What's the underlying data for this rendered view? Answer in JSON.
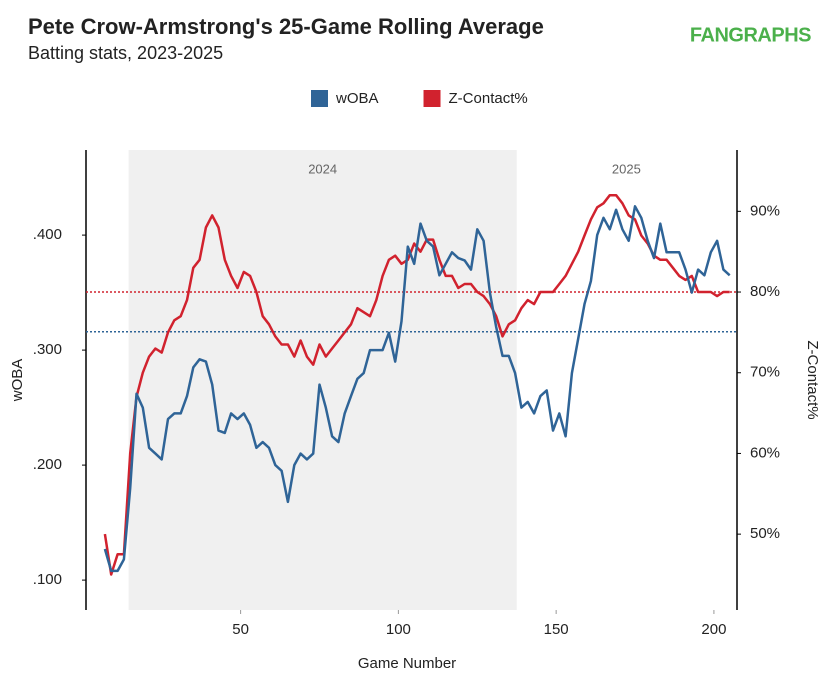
{
  "chart_data": {
    "type": "line",
    "title": "Pete Crow-Armstrong's 25-Game Rolling Average",
    "subtitle": "Batting stats, 2023-2025",
    "logo": "FANGRAPHS",
    "x_label": "Game Number",
    "y_label": "wOBA",
    "y2_label": "Z-Contact%",
    "legend": "top",
    "x": [
      7,
      9,
      11,
      13,
      15,
      17,
      19,
      21,
      23,
      25,
      27,
      29,
      31,
      33,
      35,
      37,
      39,
      41,
      43,
      45,
      47,
      49,
      51,
      53,
      55,
      57,
      59,
      61,
      63,
      65,
      67,
      69,
      71,
      73,
      75,
      77,
      79,
      81,
      83,
      85,
      87,
      89,
      91,
      93,
      95,
      97,
      99,
      101,
      103,
      105,
      107,
      109,
      111,
      113,
      115,
      117,
      119,
      121,
      123,
      125,
      127,
      129,
      131,
      133,
      135,
      137,
      139,
      141,
      143,
      145,
      147,
      149,
      151,
      153,
      155,
      157,
      159,
      161,
      163,
      165,
      167,
      169,
      171,
      173,
      175,
      177,
      179,
      181,
      183,
      185,
      187,
      189,
      191,
      193,
      195,
      197,
      199,
      201,
      203,
      205
    ],
    "series": [
      {
        "name": "wOBA",
        "color": "#2f6497",
        "values": [
          0.127,
          0.108,
          0.108,
          0.118,
          0.18,
          0.262,
          0.25,
          0.215,
          0.21,
          0.205,
          0.24,
          0.245,
          0.245,
          0.26,
          0.285,
          0.292,
          0.29,
          0.27,
          0.23,
          0.228,
          0.245,
          0.24,
          0.245,
          0.235,
          0.215,
          0.22,
          0.215,
          0.2,
          0.195,
          0.168,
          0.2,
          0.21,
          0.205,
          0.21,
          0.27,
          0.25,
          0.225,
          0.22,
          0.245,
          0.26,
          0.275,
          0.28,
          0.3,
          0.3,
          0.3,
          0.315,
          0.29,
          0.325,
          0.39,
          0.375,
          0.41,
          0.395,
          0.39,
          0.365,
          0.375,
          0.385,
          0.38,
          0.378,
          0.37,
          0.405,
          0.395,
          0.35,
          0.32,
          0.295,
          0.295,
          0.28,
          0.25,
          0.255,
          0.245,
          0.26,
          0.265,
          0.23,
          0.245,
          0.225,
          0.28,
          0.31,
          0.34,
          0.36,
          0.4,
          0.415,
          0.405,
          0.422,
          0.405,
          0.395,
          0.425,
          0.415,
          0.395,
          0.38,
          0.41,
          0.385,
          0.385,
          0.385,
          0.37,
          0.35,
          0.37,
          0.365,
          0.385,
          0.395,
          0.37,
          0.365
        ]
      },
      {
        "name": "Z-Contact%",
        "color": "#d1222e",
        "axis": "y2",
        "values": [
          50,
          45,
          47.5,
          47.5,
          60,
          67,
          70,
          72,
          73,
          72.5,
          75,
          76.5,
          77,
          79,
          83,
          84,
          88,
          89.5,
          88,
          84,
          82,
          80.5,
          82.5,
          82,
          80,
          77,
          76,
          74.5,
          73.5,
          73.5,
          72,
          74,
          72,
          71,
          73.5,
          72,
          73,
          74,
          75,
          76,
          78,
          77.5,
          77,
          79,
          82,
          84,
          84.5,
          83.5,
          84,
          86,
          85,
          86.5,
          86.5,
          84,
          82,
          82,
          80.5,
          81,
          81,
          80,
          79.5,
          78.5,
          77,
          74.5,
          76,
          76.5,
          78,
          79,
          78.5,
          80,
          80,
          80,
          81,
          82,
          83.5,
          85,
          87,
          89,
          90.5,
          91,
          92,
          92,
          91,
          89.5,
          89,
          87,
          86,
          84.5,
          84,
          84,
          83,
          82,
          81.5,
          82,
          80,
          80,
          80,
          79.5,
          80,
          80
        ]
      }
    ],
    "reference_lines": [
      {
        "value": 0.316,
        "color": "#2f6497"
      },
      {
        "value": 80,
        "axis": "y2",
        "color": "#d1222e"
      }
    ],
    "regions": [
      {
        "label": "2024",
        "x": [
          14.5,
          137.5
        ],
        "shaded": true
      },
      {
        "label": "2025",
        "x": [
          137.5,
          207
        ],
        "shaded": false
      }
    ],
    "xlim": [
      1,
      207
    ],
    "xticks": [
      50,
      100,
      150,
      200
    ],
    "ylim": [
      0.074,
      0.474
    ],
    "yticks": [
      {
        "value": 0.1,
        "label": ".100"
      },
      {
        "value": 0.2,
        "label": ".200"
      },
      {
        "value": 0.3,
        "label": ".300"
      },
      {
        "value": 0.4,
        "label": ".400"
      }
    ],
    "y2lim": [
      40.6,
      97.6
    ],
    "y2ticks": [
      {
        "value": 50,
        "label": "50%"
      },
      {
        "value": 60,
        "label": "60%"
      },
      {
        "value": 70,
        "label": "70%"
      },
      {
        "value": 80,
        "label": "80%"
      },
      {
        "value": 90,
        "label": "90%"
      }
    ],
    "grid": false
  }
}
